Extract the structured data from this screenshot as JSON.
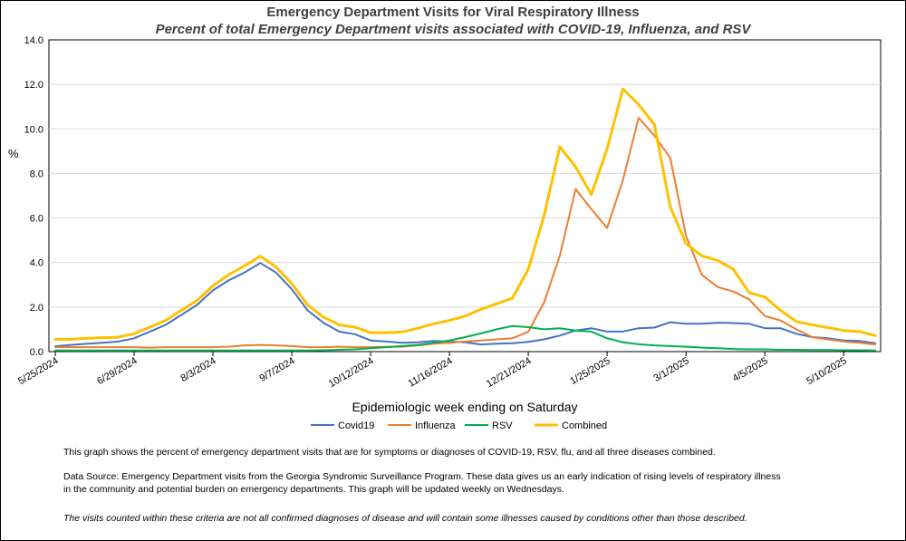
{
  "chart_data": {
    "type": "line",
    "title": "Emergency Department Visits for Viral Respiratory Illness",
    "subtitle": "Percent of total Emergency Department visits associated with COVID-19, Influenza, and RSV",
    "xlabel": "Epidemiologic  week ending on Saturday",
    "ylabel": "%",
    "ylim": [
      0,
      14
    ],
    "yticks": [
      "0.0",
      "2.0",
      "4.0",
      "6.0",
      "8.0",
      "10.0",
      "12.0",
      "14.0"
    ],
    "xtick_labels": [
      {
        "index": 0,
        "label": "5/25/2024"
      },
      {
        "index": 5,
        "label": "6/29/2024"
      },
      {
        "index": 10,
        "label": "8/3/2024"
      },
      {
        "index": 15,
        "label": "9/7/2024"
      },
      {
        "index": 20,
        "label": "10/12/2024"
      },
      {
        "index": 25,
        "label": "11/16/2024"
      },
      {
        "index": 30,
        "label": "12/21/2024"
      },
      {
        "index": 35,
        "label": "1/25/2025"
      },
      {
        "index": 40,
        "label": "3/1/2025"
      },
      {
        "index": 45,
        "label": "4/5/2025"
      },
      {
        "index": 50,
        "label": "5/10/2025"
      }
    ],
    "series": [
      {
        "name": "Covid19",
        "color": "#4472C4",
        "values": [
          0.24,
          0.3,
          0.35,
          0.4,
          0.45,
          0.6,
          0.9,
          1.2,
          1.65,
          2.1,
          2.75,
          3.2,
          3.55,
          3.98,
          3.55,
          2.8,
          1.85,
          1.3,
          0.9,
          0.78,
          0.5,
          0.45,
          0.4,
          0.42,
          0.48,
          0.45,
          0.42,
          0.32,
          0.36,
          0.38,
          0.44,
          0.55,
          0.72,
          0.95,
          1.05,
          0.9,
          0.9,
          1.05,
          1.08,
          1.32,
          1.25,
          1.25,
          1.3,
          1.28,
          1.25,
          1.05,
          1.05,
          0.8,
          0.65,
          0.6,
          0.5,
          0.48,
          0.38
        ]
      },
      {
        "name": "Influenza",
        "color": "#ED7D31",
        "values": [
          0.2,
          0.2,
          0.2,
          0.2,
          0.2,
          0.2,
          0.18,
          0.2,
          0.2,
          0.2,
          0.2,
          0.22,
          0.28,
          0.3,
          0.28,
          0.25,
          0.2,
          0.2,
          0.22,
          0.2,
          0.2,
          0.22,
          0.22,
          0.28,
          0.35,
          0.4,
          0.45,
          0.5,
          0.55,
          0.6,
          0.9,
          2.2,
          4.3,
          7.3,
          6.4,
          5.55,
          7.7,
          10.5,
          9.7,
          8.7,
          5.2,
          3.45,
          2.9,
          2.7,
          2.35,
          1.6,
          1.4,
          1.0,
          0.65,
          0.55,
          0.45,
          0.4,
          0.32
        ]
      },
      {
        "name": "RSV",
        "color": "#00B050",
        "values": [
          0.05,
          0.05,
          0.05,
          0.05,
          0.05,
          0.05,
          0.05,
          0.05,
          0.05,
          0.05,
          0.05,
          0.05,
          0.05,
          0.05,
          0.05,
          0.05,
          0.05,
          0.06,
          0.08,
          0.1,
          0.15,
          0.2,
          0.25,
          0.3,
          0.4,
          0.5,
          0.65,
          0.82,
          1.0,
          1.15,
          1.1,
          1.0,
          1.05,
          0.95,
          0.9,
          0.6,
          0.42,
          0.33,
          0.28,
          0.25,
          0.22,
          0.18,
          0.15,
          0.12,
          0.1,
          0.1,
          0.08,
          0.08,
          0.07,
          0.07,
          0.06,
          0.06,
          0.05
        ]
      },
      {
        "name": "Combined",
        "color": "#FFC000",
        "values": [
          0.55,
          0.55,
          0.6,
          0.62,
          0.65,
          0.8,
          1.1,
          1.4,
          1.85,
          2.3,
          2.95,
          3.45,
          3.85,
          4.28,
          3.8,
          3.05,
          2.1,
          1.55,
          1.2,
          1.1,
          0.85,
          0.85,
          0.88,
          1.05,
          1.25,
          1.4,
          1.6,
          1.9,
          2.15,
          2.4,
          3.7,
          6.1,
          9.2,
          8.3,
          7.05,
          9.1,
          11.8,
          11.1,
          10.2,
          6.5,
          4.85,
          4.3,
          4.1,
          3.7,
          2.65,
          2.45,
          1.85,
          1.35,
          1.2,
          1.08,
          0.95,
          0.9,
          0.72
        ]
      }
    ]
  },
  "notes": {
    "line1": "This graph shows the percent of emergency department visits that are for symptoms or diagnoses of COVID-19, RSV, flu, and all three diseases combined.",
    "line2": "Data Source: Emergency Department visits from the Georgia Syndromic Surveillance Program. These data gives us an early indication of rising levels of respiratory illness",
    "line3": "in the community and potential burden on emergency departments. This graph will be updated weekly on Wednesdays.",
    "line4": "The visits counted within these criteria are not all confirmed diagnoses of disease and will contain some illnesses caused by conditions other than those described."
  }
}
